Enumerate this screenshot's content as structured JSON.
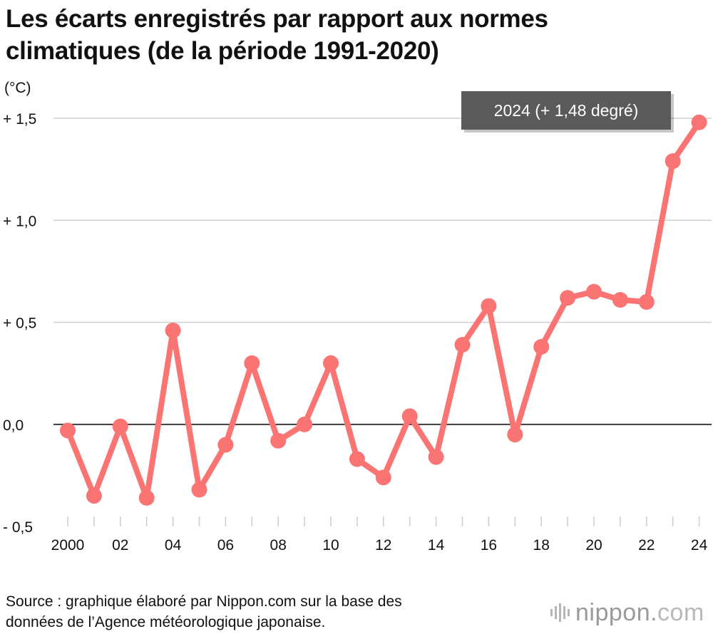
{
  "chart_data": {
    "type": "line",
    "title_line1": "Les écarts enregistrés par rapport aux normes",
    "title_line2": "climatiques (de la période 1991-2020)",
    "ylabel": "(°C)",
    "xlabel": "",
    "x": [
      2000,
      2001,
      2002,
      2003,
      2004,
      2005,
      2006,
      2007,
      2008,
      2009,
      2010,
      2011,
      2012,
      2013,
      2014,
      2015,
      2016,
      2017,
      2018,
      2019,
      2020,
      2021,
      2022,
      2023,
      2024
    ],
    "values": [
      -0.03,
      -0.35,
      -0.01,
      -0.36,
      0.46,
      -0.32,
      -0.1,
      0.3,
      -0.08,
      0.0,
      0.3,
      -0.17,
      -0.26,
      0.04,
      -0.16,
      0.39,
      0.58,
      -0.05,
      0.38,
      0.62,
      0.65,
      0.61,
      0.6,
      1.29,
      1.48
    ],
    "ylim": [
      -0.5,
      1.5
    ],
    "y_ticks": [
      {
        "value": 1.5,
        "label": "+ 1,5"
      },
      {
        "value": 1.0,
        "label": "+ 1,0"
      },
      {
        "value": 0.5,
        "label": "+ 0,5"
      },
      {
        "value": 0.0,
        "label": "0,0"
      },
      {
        "value": -0.5,
        "label": "- 0,5"
      }
    ],
    "x_ticks": [
      {
        "value": 2000,
        "label": "2000"
      },
      {
        "value": 2002,
        "label": "02"
      },
      {
        "value": 2004,
        "label": "04"
      },
      {
        "value": 2006,
        "label": "06"
      },
      {
        "value": 2008,
        "label": "08"
      },
      {
        "value": 2010,
        "label": "10"
      },
      {
        "value": 2012,
        "label": "12"
      },
      {
        "value": 2014,
        "label": "14"
      },
      {
        "value": 2016,
        "label": "16"
      },
      {
        "value": 2018,
        "label": "18"
      },
      {
        "value": 2020,
        "label": "20"
      },
      {
        "value": 2022,
        "label": "22"
      },
      {
        "value": 2024,
        "label": "24"
      }
    ],
    "annotation": "2024 (+ 1,48 degré)",
    "line_color": "#fa7474",
    "grid": true
  },
  "footer": {
    "source_line1": "Source : graphique élaboré par Nippon.com sur la base des",
    "source_line2": "données de l’Agence météorologique japonaise.",
    "logo_main": "nippon.",
    "logo_suffix": "com"
  }
}
